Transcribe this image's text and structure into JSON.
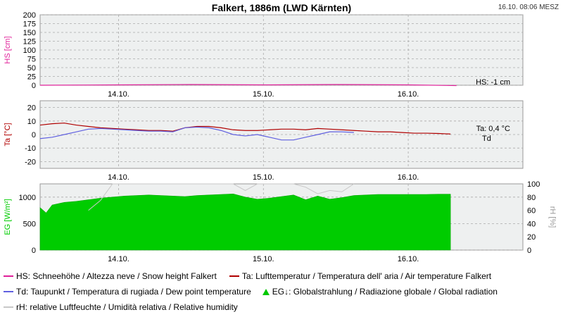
{
  "header": {
    "title": "Falkert, 1886m (LWD Kärnten)",
    "timestamp": "16.10. 08:06 MESZ"
  },
  "colors": {
    "hs": "#e0209a",
    "ta": "#b00000",
    "td": "#6060e0",
    "eg": "#00cc00",
    "rh": "#c8c8c8",
    "panel_bg": "#eef0f0",
    "grid": "#aaaaaa"
  },
  "chart_data": [
    {
      "type": "line",
      "panel": "snow",
      "ylabel": "HS [cm]",
      "ylim": [
        0,
        200
      ],
      "yticks": [
        0,
        25,
        50,
        75,
        100,
        125,
        150,
        175,
        200
      ],
      "xticks": [
        "14.10.",
        "15.10.",
        "16.10."
      ],
      "annotation": "HS: -1 cm",
      "series": [
        {
          "name": "HS",
          "x": [
            "13.10. 12:00",
            "14.10. 00:00",
            "14.10. 12:00",
            "15.10. 00:00",
            "15.10. 12:00",
            "16.10. 00:00",
            "16.10. 08:00"
          ],
          "values": [
            0,
            1,
            2,
            1,
            2,
            1,
            -1
          ]
        }
      ]
    },
    {
      "type": "line",
      "panel": "temperature",
      "ylabel": "Ta [°C]",
      "ylim": [
        -25,
        25
      ],
      "yticks": [
        -20,
        -10,
        0,
        10,
        20
      ],
      "xticks": [
        "14.10.",
        "15.10.",
        "16.10."
      ],
      "annotation_ta": "Ta: 0,4 °C",
      "annotation_td": "Td",
      "series": [
        {
          "name": "Ta",
          "x": [
            0,
            2,
            4,
            6,
            8,
            10,
            12,
            14,
            16,
            18,
            20,
            22,
            24,
            26,
            28,
            30,
            32,
            34,
            36,
            38,
            40,
            42,
            44,
            46,
            48,
            50,
            52,
            54,
            56,
            58,
            60,
            62,
            64,
            66,
            68
          ],
          "values": [
            7,
            8,
            8.5,
            7,
            6,
            5,
            4.5,
            4,
            3.5,
            3,
            3,
            2.5,
            5,
            6,
            6,
            5,
            3.5,
            3,
            3,
            3.5,
            4,
            4,
            3.5,
            4.5,
            4,
            3.5,
            3,
            2.5,
            2,
            2,
            1.5,
            1,
            1,
            0.8,
            0.4
          ]
        },
        {
          "name": "Td",
          "x": [
            0,
            2,
            4,
            6,
            8,
            10,
            12,
            14,
            16,
            18,
            20,
            22,
            24,
            26,
            28,
            30,
            32,
            34,
            36,
            38,
            40,
            42,
            44,
            46,
            48,
            50,
            52
          ],
          "values": [
            -3,
            -2,
            0,
            2,
            4,
            4.5,
            4,
            3.5,
            3,
            2.5,
            2.5,
            2,
            5,
            5.5,
            5,
            3,
            0,
            -1,
            0,
            -2,
            -4,
            -4,
            -2,
            0,
            2,
            2,
            1.5
          ]
        }
      ]
    },
    {
      "type": "area",
      "panel": "radiation",
      "ylabel": "EG [W/m²]",
      "ylabel_right": "rH [%]",
      "ylim": [
        0,
        1250
      ],
      "ylim_right": [
        0,
        100
      ],
      "yticks": [
        0,
        500,
        1000
      ],
      "yticks_right": [
        0,
        20,
        40,
        60,
        80,
        100
      ],
      "xticks": [
        "14.10.",
        "15.10.",
        "16.10."
      ],
      "series": [
        {
          "name": "EG",
          "x": [
            0,
            1,
            2,
            4,
            6,
            8,
            10,
            12,
            14,
            16,
            18,
            20,
            22,
            24,
            26,
            28,
            30,
            32,
            34,
            36,
            38,
            40,
            42,
            44,
            46,
            48,
            50,
            52,
            54,
            56,
            58,
            60,
            62,
            64,
            66,
            68
          ],
          "values": [
            800,
            700,
            850,
            900,
            920,
            950,
            980,
            1000,
            1020,
            1030,
            1040,
            1030,
            1020,
            1010,
            1030,
            1040,
            1050,
            1060,
            1000,
            960,
            980,
            1010,
            1040,
            950,
            1020,
            960,
            990,
            1030,
            1040,
            1050,
            1050,
            1050,
            1050,
            1050,
            1055,
            1055
          ]
        },
        {
          "name": "rH",
          "x": [
            8,
            10,
            12,
            14,
            16,
            18,
            20,
            22,
            24,
            26,
            28,
            30,
            32,
            34,
            36,
            38,
            40,
            42,
            44,
            46,
            48,
            50,
            52
          ],
          "values": [
            60,
            75,
            100,
            100,
            100,
            100,
            100,
            100,
            100,
            100,
            100,
            100,
            100,
            90,
            100,
            100,
            100,
            100,
            95,
            85,
            90,
            88,
            100
          ]
        }
      ]
    }
  ],
  "legend": {
    "hs": "HS: Schneehöhe / Altezza neve / Snow height  Falkert",
    "ta": "Ta: Lufttemperatur / Temperatura dell' aria / Air temperature  Falkert",
    "td": "Td: Taupunkt / Temperatura di rugiada / Dew point temperature",
    "eg": "EG↓: Globalstrahlung / Radiazione globale / Global radiation",
    "rh": "rH: relative Luftfeuchte / Umidità relativa / Relative humidity"
  }
}
